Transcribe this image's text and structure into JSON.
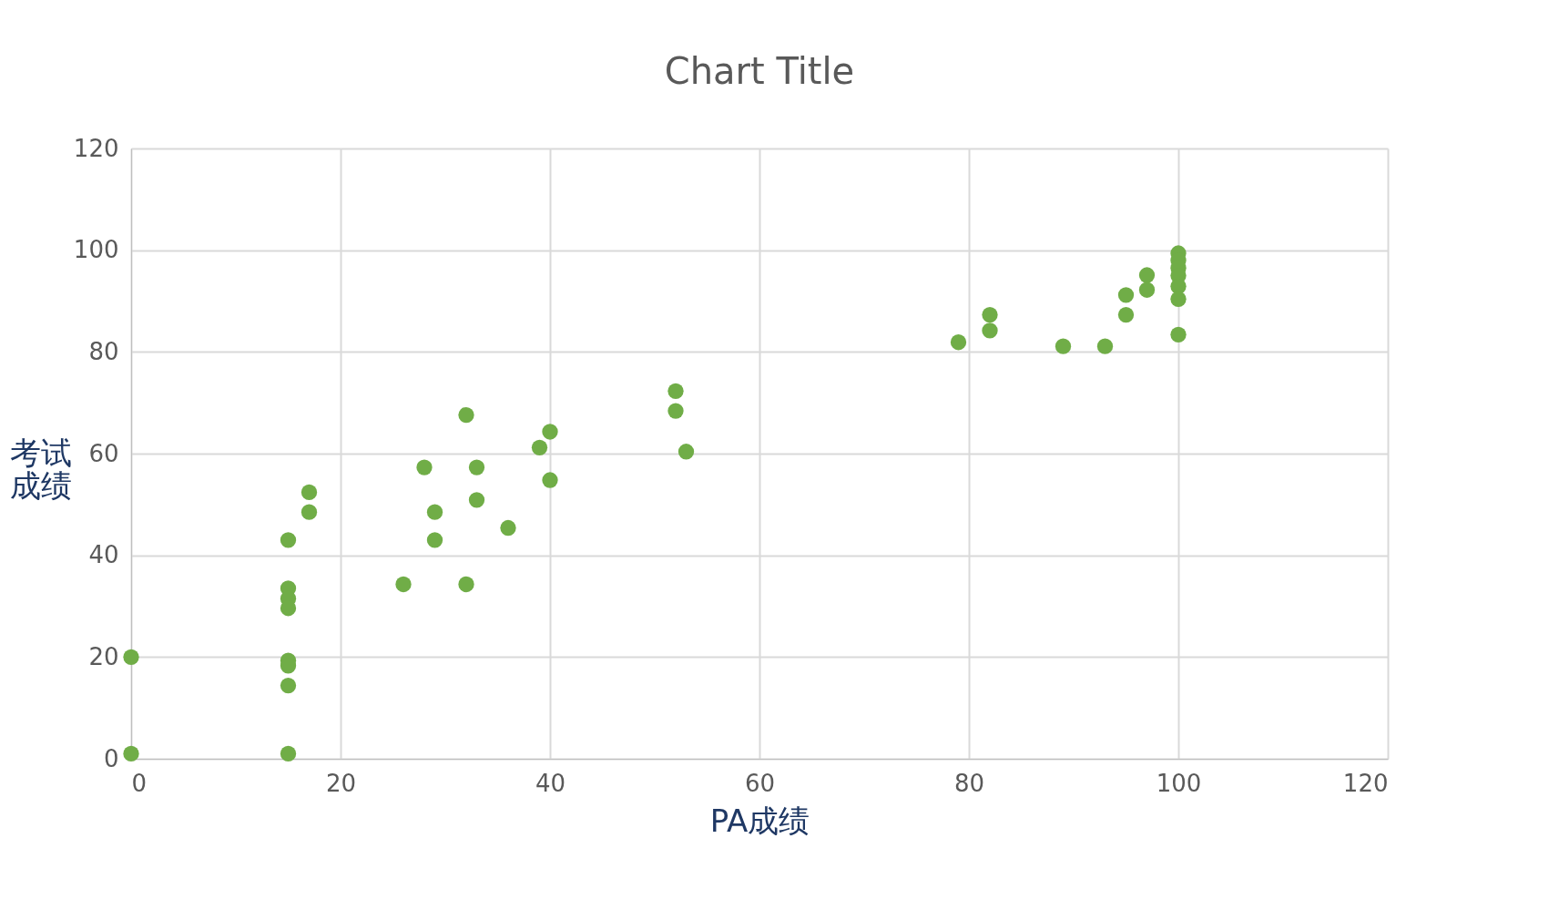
{
  "chart_data": {
    "type": "scatter",
    "title": "Chart Title",
    "xlabel": "PA成绩",
    "ylabel": "考试成绩",
    "x": [
      0,
      0,
      15,
      15,
      15,
      15,
      15,
      15,
      15,
      15,
      17,
      17,
      26,
      28,
      29,
      29,
      32,
      32,
      33,
      33,
      36,
      39,
      40,
      40,
      52,
      52,
      53,
      79,
      82,
      82,
      89,
      93,
      95,
      95,
      97,
      97,
      100,
      100,
      100,
      100,
      100,
      100,
      100
    ],
    "series": [
      {
        "color": "#70ad47",
        "values": [
          1,
          20,
          43,
          33.5,
          31.5,
          29.6,
          19.3,
          18.3,
          14.4,
          1,
          52.4,
          48.5,
          34.3,
          57.3,
          48.5,
          43,
          67.6,
          34.3,
          57.3,
          50.9,
          45.4,
          61.2,
          64.3,
          54.8,
          72.3,
          68.4,
          60.4,
          81.9,
          87.3,
          84.2,
          81.1,
          81.1,
          91.2,
          87.3,
          95.1,
          92.2,
          99.4,
          98,
          96.5,
          95,
          92.9,
          90.4,
          83.4
        ]
      }
    ],
    "xlim": [
      0,
      120
    ],
    "xticks": [
      0,
      20,
      40,
      60,
      80,
      100,
      120
    ],
    "ylim": [
      0,
      120
    ],
    "yticks": [
      0,
      20,
      40,
      60,
      80,
      100,
      120
    ],
    "grid": true,
    "marker": "circle",
    "legend": false
  }
}
